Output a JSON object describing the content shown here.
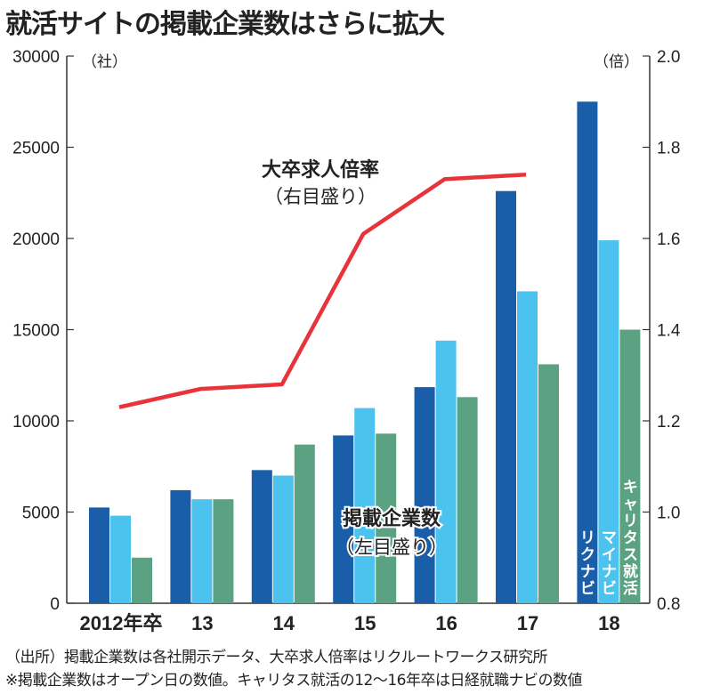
{
  "title": "就活サイトの掲載企業数はさらに拡大",
  "chart_data": {
    "type": "bar+line",
    "title": "就活サイトの掲載企業数はさらに拡大",
    "categories": [
      "2012年卒",
      "13",
      "14",
      "15",
      "16",
      "17",
      "18"
    ],
    "left_axis": {
      "unit": "（社）",
      "ylim": [
        0,
        30000
      ],
      "ticks": [
        "0",
        "5000",
        "10000",
        "15000",
        "20000",
        "25000",
        "30000"
      ]
    },
    "right_axis": {
      "unit": "（倍）",
      "ylim": [
        0.8,
        2.0
      ],
      "ticks": [
        "0.8",
        "1.0",
        "1.2",
        "1.4",
        "1.6",
        "1.8",
        "2.0"
      ]
    },
    "series": [
      {
        "name": "リクナビ",
        "type": "bar",
        "axis": "left",
        "color": "#1a5ea9",
        "values": [
          5250,
          6200,
          7300,
          9200,
          11850,
          22600,
          27500
        ]
      },
      {
        "name": "マイナビ",
        "type": "bar",
        "axis": "left",
        "color": "#4cc3ef",
        "values": [
          4800,
          5700,
          7000,
          10700,
          14400,
          17100,
          19900
        ]
      },
      {
        "name": "キャリタス就活",
        "type": "bar",
        "axis": "left",
        "color": "#5ba283",
        "values": [
          2500,
          5700,
          8700,
          9300,
          11300,
          13100,
          15000
        ]
      },
      {
        "name": "大卒求人倍率",
        "type": "line",
        "axis": "right",
        "color": "#e8333b",
        "values": [
          1.23,
          1.27,
          1.28,
          1.61,
          1.73,
          1.74,
          null
        ]
      }
    ],
    "annotations": {
      "line_label": "大卒求人倍率",
      "line_sub": "（右目盛り）",
      "bar_label": "掲載企業数",
      "bar_sub": "（左目盛り）"
    }
  },
  "notes": [
    "（出所）掲載企業数は各社開示データ、大卒求人倍率はリクルートワークス研究所",
    "※掲載企業数はオープン日の数値。キャリタス就活の12～16年卒は日経就職ナビの数値"
  ]
}
